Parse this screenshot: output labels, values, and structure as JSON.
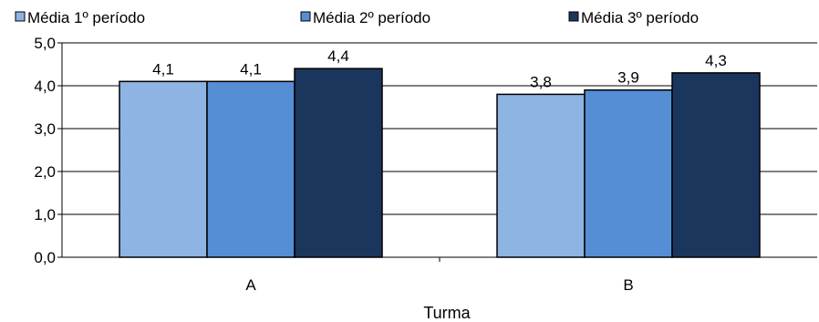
{
  "chart_data": {
    "type": "bar",
    "title": "",
    "xlabel": "Turma",
    "ylabel": "",
    "categories": [
      "A",
      "B"
    ],
    "series": [
      {
        "name": "Média 1º período",
        "color": "#8eb4e3",
        "values": [
          4.1,
          3.8
        ],
        "labels": [
          "4,1",
          "3,8"
        ]
      },
      {
        "name": "Média 2º período",
        "color": "#558ed5",
        "values": [
          4.1,
          3.9
        ],
        "labels": [
          "4,1",
          "3,9"
        ]
      },
      {
        "name": "Média 3º período",
        "color": "#1b365d",
        "values": [
          4.4,
          4.3
        ],
        "labels": [
          "4,4",
          "4,3"
        ]
      }
    ],
    "ylim": [
      0,
      5
    ],
    "yticks": [
      0,
      1,
      2,
      3,
      4,
      5
    ],
    "ytick_labels": [
      "0,0",
      "1,0",
      "2,0",
      "3,0",
      "4,0",
      "5,0"
    ],
    "grid": true,
    "legend_position": "top"
  }
}
